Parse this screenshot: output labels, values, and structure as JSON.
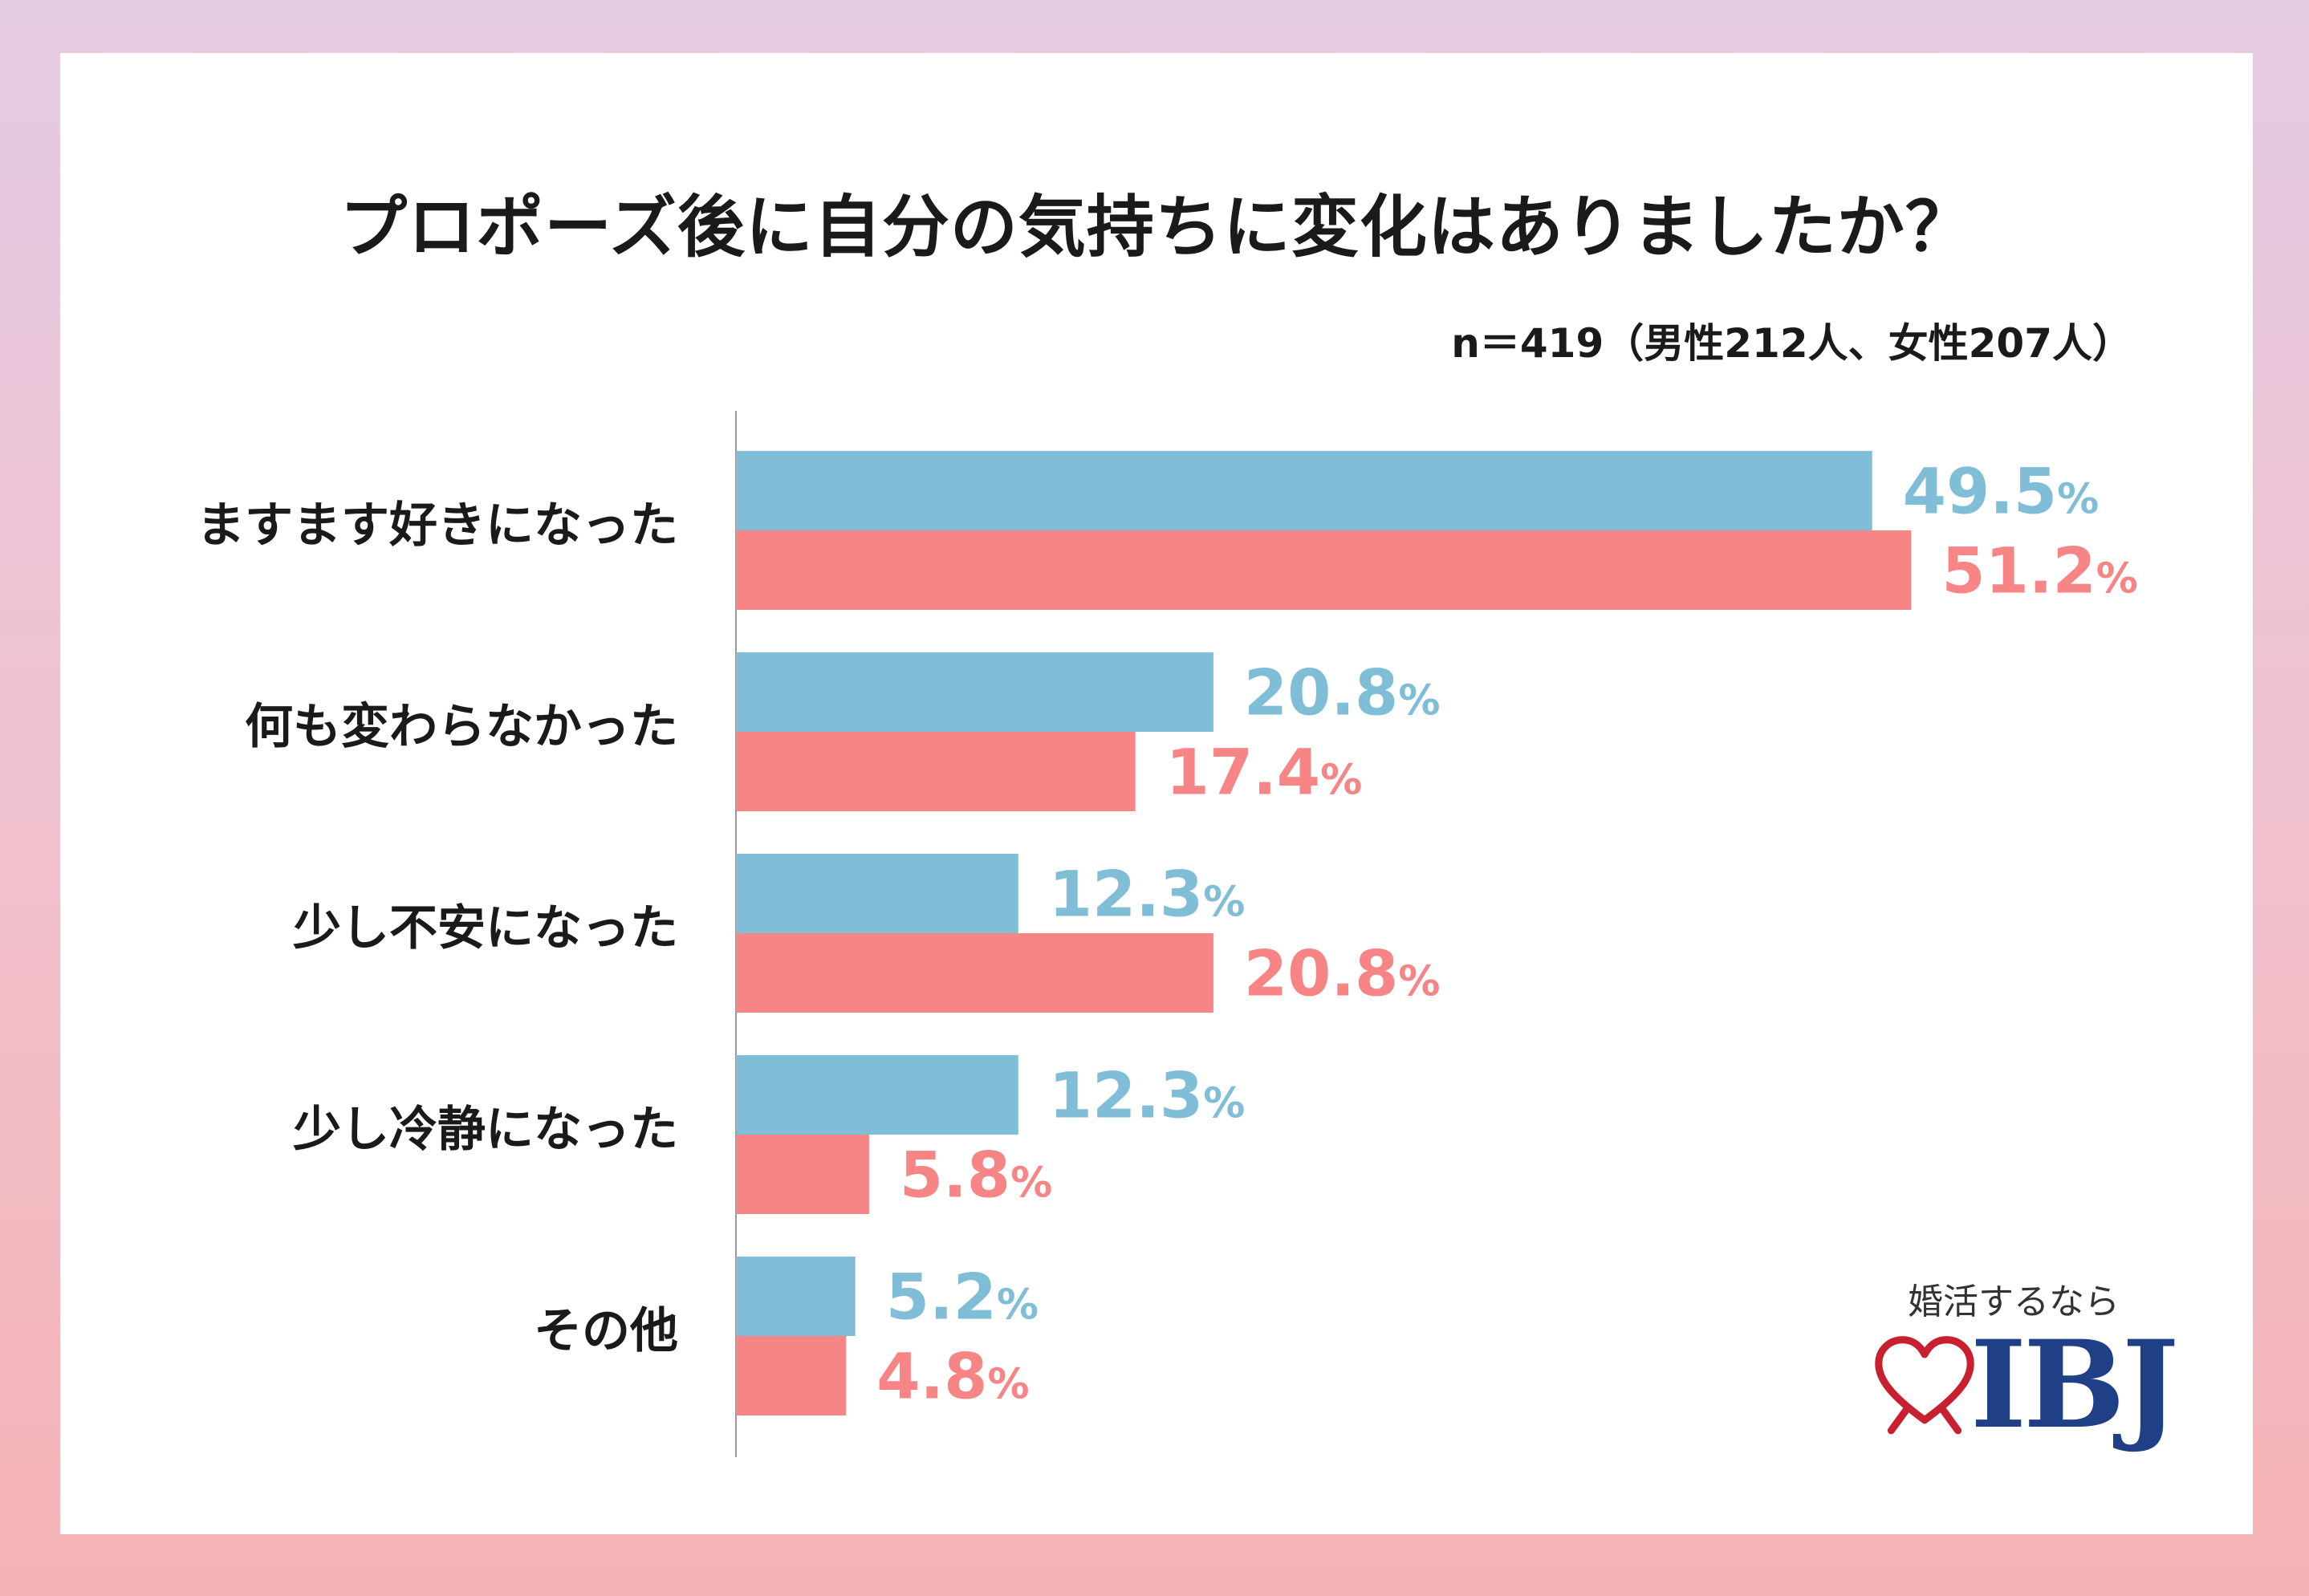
{
  "title": "プロポーズ後に自分の気持ちに変化はありましたか？",
  "sample_note": "n＝419（男性212人、女性207人）",
  "colors": {
    "male": "#7fbed6",
    "female": "#f78585",
    "axis": "#999999"
  },
  "chart_data": {
    "type": "bar",
    "orientation": "horizontal",
    "title": "プロポーズ後に自分の気持ちに変化はありましたか？",
    "categories": [
      "ますます好きになった",
      "何も変わらなかった",
      "少し不安になった",
      "少し冷静になった",
      "その他"
    ],
    "series": [
      {
        "name": "男性",
        "color": "#7fbed6",
        "values": [
          49.5,
          20.8,
          12.3,
          12.3,
          5.2
        ]
      },
      {
        "name": "女性",
        "color": "#f78585",
        "values": [
          51.2,
          17.4,
          20.8,
          5.8,
          4.8
        ]
      }
    ],
    "value_suffix": "%",
    "xlim": [
      0,
      60
    ],
    "legend": "none"
  },
  "logo": {
    "tagline": "婚活するなら",
    "brand": "IBJ",
    "icon": "heart-icon"
  }
}
